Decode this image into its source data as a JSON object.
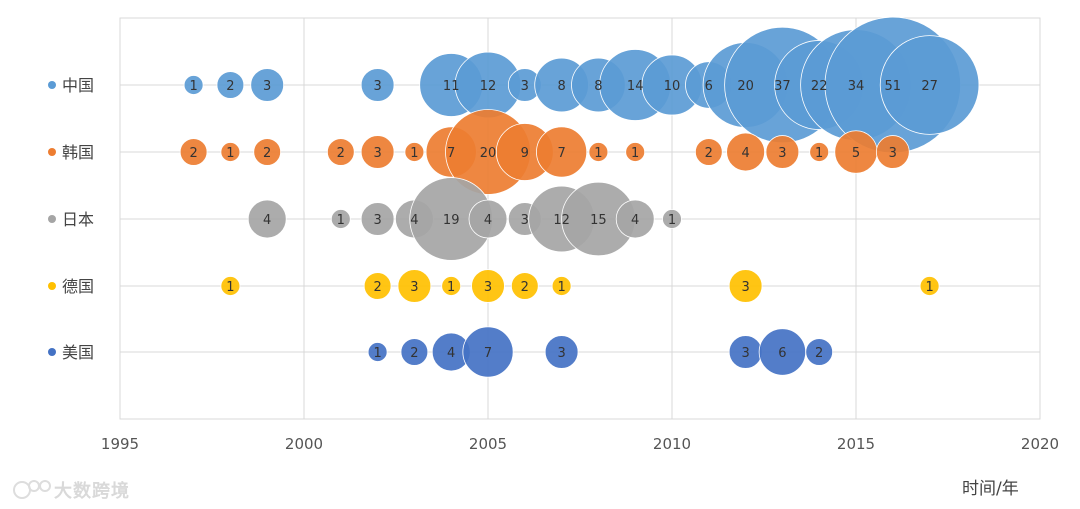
{
  "chart_data": {
    "type": "bubble",
    "xlabel": "时间/年",
    "xlim": [
      1995,
      2020
    ],
    "xticks": [
      1995,
      2000,
      2005,
      2010,
      2015,
      2020
    ],
    "countries": [
      {
        "name": "中国",
        "color": "#5B9BD5",
        "points": [
          [
            1997,
            1
          ],
          [
            1998,
            2
          ],
          [
            1999,
            3
          ],
          [
            2002,
            3
          ],
          [
            2004,
            11
          ],
          [
            2005,
            12
          ],
          [
            2006,
            3
          ],
          [
            2007,
            8
          ],
          [
            2008,
            8
          ],
          [
            2009,
            14
          ],
          [
            2010,
            10
          ],
          [
            2011,
            6
          ],
          [
            2012,
            20
          ],
          [
            2013,
            37
          ],
          [
            2014,
            22
          ],
          [
            2015,
            34
          ],
          [
            2016,
            51
          ],
          [
            2017,
            27
          ]
        ]
      },
      {
        "name": "韩国",
        "color": "#ED7D31",
        "points": [
          [
            1997,
            2
          ],
          [
            1998,
            1
          ],
          [
            1999,
            2
          ],
          [
            2001,
            2
          ],
          [
            2002,
            3
          ],
          [
            2003,
            1
          ],
          [
            2004,
            7
          ],
          [
            2005,
            20
          ],
          [
            2006,
            9
          ],
          [
            2007,
            7
          ],
          [
            2008,
            1
          ],
          [
            2009,
            1
          ],
          [
            2011,
            2
          ],
          [
            2012,
            4
          ],
          [
            2013,
            3
          ],
          [
            2014,
            1
          ],
          [
            2015,
            5
          ],
          [
            2016,
            3
          ]
        ]
      },
      {
        "name": "日本",
        "color": "#A5A5A5",
        "points": [
          [
            1999,
            4
          ],
          [
            2001,
            1
          ],
          [
            2002,
            3
          ],
          [
            2003,
            4
          ],
          [
            2004,
            19
          ],
          [
            2005,
            4
          ],
          [
            2006,
            3
          ],
          [
            2007,
            12
          ],
          [
            2008,
            15
          ],
          [
            2009,
            4
          ],
          [
            2010,
            1
          ]
        ]
      },
      {
        "name": "德国",
        "color": "#FFC000",
        "points": [
          [
            1998,
            1
          ],
          [
            2002,
            2
          ],
          [
            2003,
            3
          ],
          [
            2004,
            1
          ],
          [
            2005,
            3
          ],
          [
            2006,
            2
          ],
          [
            2007,
            1
          ],
          [
            2012,
            3
          ],
          [
            2017,
            1
          ]
        ]
      },
      {
        "name": "美国",
        "color": "#4472C4",
        "points": [
          [
            2002,
            1
          ],
          [
            2003,
            2
          ],
          [
            2004,
            4
          ],
          [
            2005,
            7
          ],
          [
            2007,
            3
          ],
          [
            2012,
            3
          ],
          [
            2013,
            6
          ],
          [
            2014,
            2
          ]
        ]
      }
    ]
  },
  "watermark": {
    "text": "大数跨境"
  }
}
